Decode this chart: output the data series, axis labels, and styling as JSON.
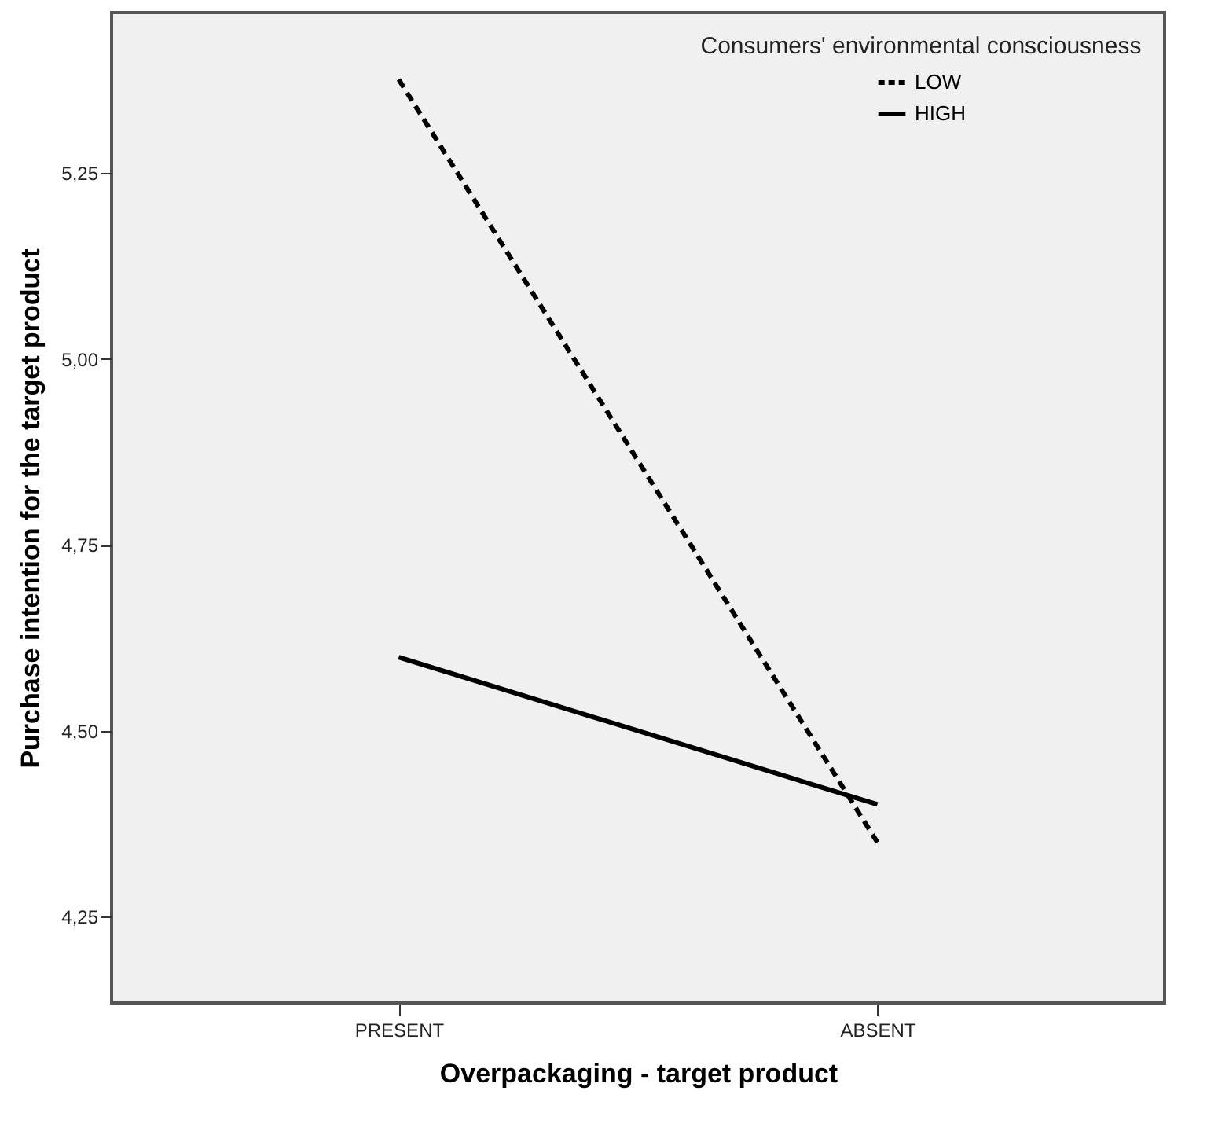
{
  "chart_data": {
    "type": "line",
    "xlabel": "Overpackaging - target product",
    "ylabel": "Purchase intention for the target product",
    "legend_title": "Consumers' environmental consciousness",
    "categories": [
      "PRESENT",
      "ABSENT"
    ],
    "series": [
      {
        "name": "LOW",
        "color": "#000000",
        "line_style": "dashed",
        "values": [
          5.376,
          4.35
        ]
      },
      {
        "name": "HIGH",
        "color": "#000000",
        "line_style": "solid",
        "values": [
          4.599,
          4.401
        ]
      }
    ],
    "ylim": [
      4.134,
      5.466
    ],
    "yticks": [
      {
        "value": 4.25,
        "label": "4,25"
      },
      {
        "value": 4.5,
        "label": "4,50"
      },
      {
        "value": 4.75,
        "label": "4,75"
      },
      {
        "value": 5.0,
        "label": "5,00"
      },
      {
        "value": 5.25,
        "label": "5,25"
      }
    ],
    "grid": false,
    "legend": "top right"
  }
}
